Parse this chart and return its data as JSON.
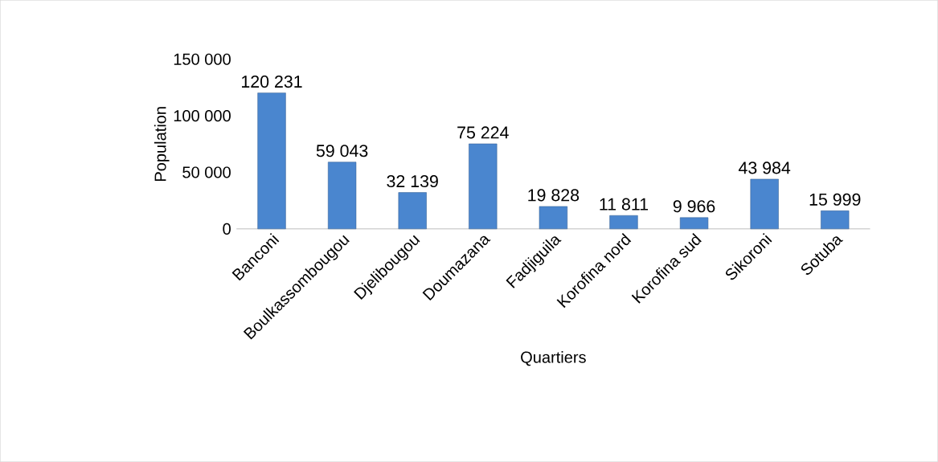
{
  "chart_data": {
    "type": "bar",
    "xlabel": "Quartiers",
    "ylabel": "Population",
    "categories": [
      "Banconi",
      "Boulkassombougou",
      "Djelibougou",
      "Doumazana",
      "Fadjiguila",
      "Korofina nord",
      "Korofina sud",
      "Sikoroni",
      "Sotuba"
    ],
    "values": [
      120231,
      59043,
      32139,
      75224,
      19828,
      11811,
      9966,
      43984,
      15999
    ],
    "value_labels": [
      "120 231",
      "59 043",
      "32 139",
      "75 224",
      "19 828",
      "11 811",
      "9 966",
      "43 984",
      "15 999"
    ],
    "color": "#4a86cf",
    "ylim": [
      0,
      150000
    ],
    "yticks": [
      {
        "value": 0,
        "label": "0"
      },
      {
        "value": 50000,
        "label": "50 000"
      },
      {
        "value": 100000,
        "label": "100 000"
      },
      {
        "value": 150000,
        "label": "150 000"
      }
    ],
    "grid": false
  }
}
